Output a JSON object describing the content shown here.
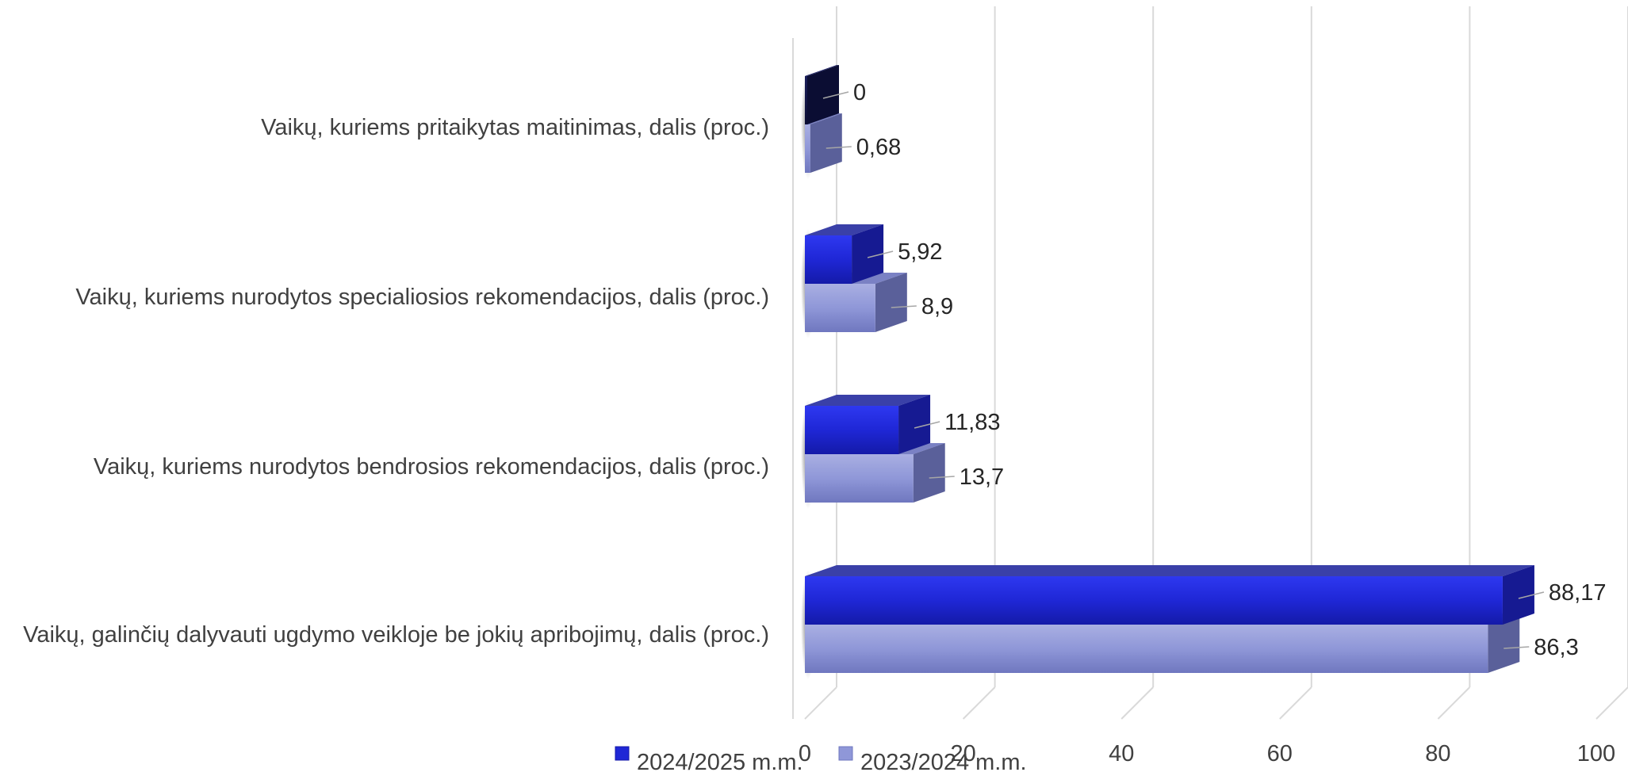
{
  "chart_data": {
    "type": "bar",
    "orientation": "horizontal",
    "style": "3d-clustered",
    "categories": [
      "Vaikų, kuriems pritaikytas maitinimas, dalis (proc.)",
      "Vaikų, kuriems nurodytos specialiosios rekomendacijos, dalis (proc.)",
      "Vaikų, kuriems nurodytos bendrosios rekomendacijos, dalis (proc.)",
      "Vaikų, galinčių dalyvauti ugdymo veikloje be jokių apribojimų, dalis (proc.)"
    ],
    "series": [
      {
        "name": "2024/2025 m.m.",
        "color": "#1f27d6",
        "values": [
          0,
          5.92,
          11.83,
          88.17
        ],
        "labels": [
          "0",
          "5,92",
          "11,83",
          "88,17"
        ]
      },
      {
        "name": "2023/2024 m.m.",
        "color": "#8f97d8",
        "values": [
          0.68,
          8.9,
          13.7,
          86.3
        ],
        "labels": [
          "0,68",
          "8,9",
          "13,7",
          "86,3"
        ]
      }
    ],
    "xlim": [
      0,
      100
    ],
    "xticks": [
      0,
      20,
      40,
      60,
      80,
      100
    ],
    "xtick_labels": [
      "0",
      "20",
      "40",
      "60",
      "80",
      "100"
    ],
    "grid": true,
    "legend_position": "bottom"
  }
}
